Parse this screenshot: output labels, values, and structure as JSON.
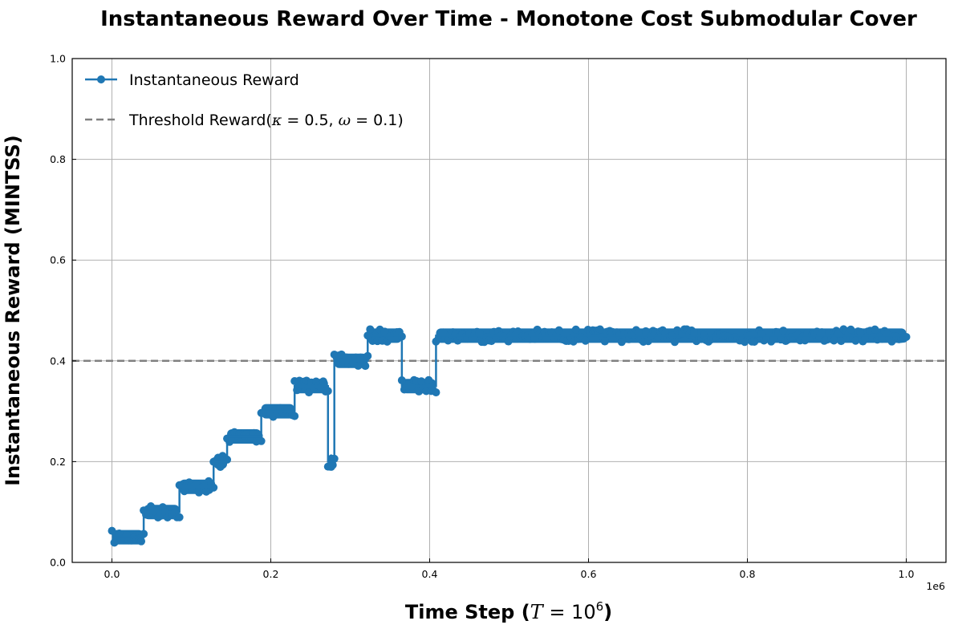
{
  "chart_data": {
    "type": "line",
    "title": "Instantaneous Reward Over Time - Monotone Cost Submodular Cover",
    "xlabel_prefix": "Time Step (",
    "xlabel_var": "T",
    "xlabel_eq": " = 10",
    "xlabel_exp": "6",
    "xlabel_suffix": ")",
    "ylabel": "Instantaneous Reward (MINTSS)",
    "x_offset_label": "1e6",
    "x_tick_labels": [
      "0.0",
      "0.2",
      "0.4",
      "0.6",
      "0.8",
      "1.0"
    ],
    "y_tick_labels": [
      "0.0",
      "0.2",
      "0.4",
      "0.6",
      "0.8",
      "1.0"
    ],
    "x_ticks": [
      0,
      200000,
      400000,
      600000,
      800000,
      1000000
    ],
    "y_ticks": [
      0,
      0.2,
      0.4,
      0.6,
      0.8,
      1.0
    ],
    "xlim": [
      -50000,
      1050000
    ],
    "ylim": [
      0,
      1.0
    ],
    "grid": true,
    "legend_position": "top-left",
    "colors": {
      "reward": "#1f77b4",
      "threshold": "#808080"
    },
    "series": [
      {
        "name": "Instantaneous Reward",
        "style": "line-with-markers",
        "segments": [
          {
            "x_start": 0,
            "x_end": 40000,
            "value": 0.05
          },
          {
            "x_start": 40000,
            "x_end": 85000,
            "value": 0.1
          },
          {
            "x_start": 85000,
            "x_end": 128000,
            "value": 0.15
          },
          {
            "x_start": 128000,
            "x_end": 145000,
            "value": 0.2
          },
          {
            "x_start": 145000,
            "x_end": 188000,
            "value": 0.25
          },
          {
            "x_start": 188000,
            "x_end": 230000,
            "value": 0.3
          },
          {
            "x_start": 230000,
            "x_end": 272000,
            "value": 0.35
          },
          {
            "x_start": 272000,
            "x_end": 280000,
            "value": 0.2
          },
          {
            "x_start": 280000,
            "x_end": 322000,
            "value": 0.4
          },
          {
            "x_start": 322000,
            "x_end": 365000,
            "value": 0.45
          },
          {
            "x_start": 365000,
            "x_end": 408000,
            "value": 0.35
          },
          {
            "x_start": 408000,
            "x_end": 1000000,
            "value": 0.45
          }
        ]
      },
      {
        "name_prefix": "Threshold Reward(",
        "name_kappa": "κ",
        "name_kappa_val": " = 0.5, ",
        "name_omega": "ω",
        "name_omega_val": " = 0.1)",
        "style": "dashed",
        "value": 0.4
      }
    ]
  }
}
